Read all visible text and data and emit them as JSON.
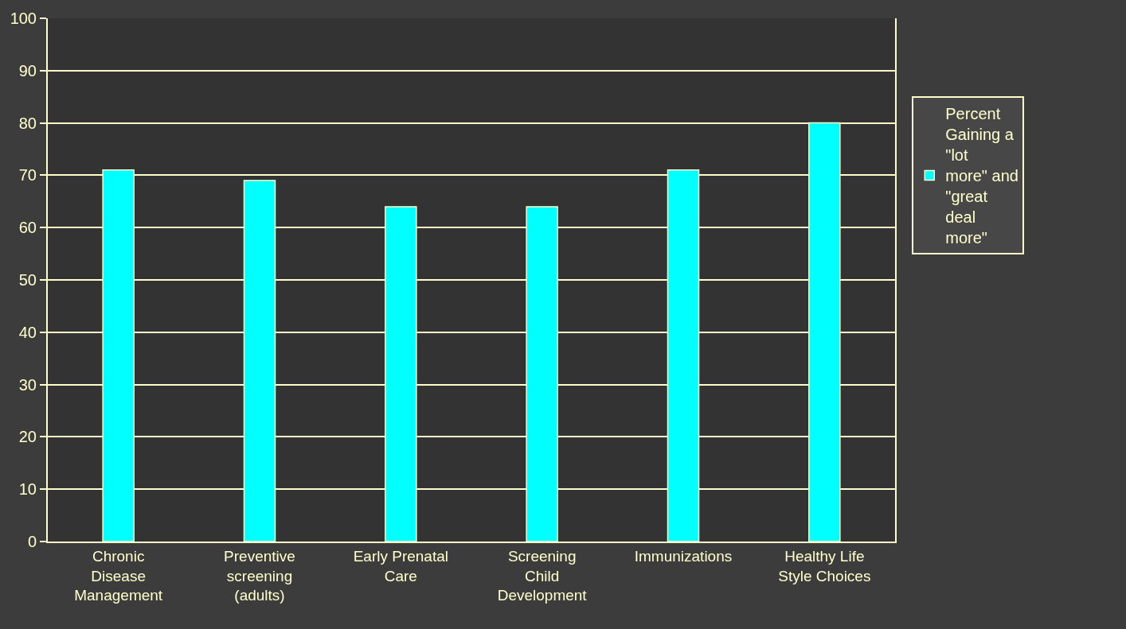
{
  "chart_data": {
    "type": "bar",
    "categories": [
      "Chronic Disease Management",
      "Preventive screening (adults)",
      "Early Prenatal Care",
      "Screening Child Development",
      "Immunizations",
      "Healthy Life Style Choices"
    ],
    "series": [
      {
        "name": "Percent Gaining a \"lot more\" and \"great deal more\"",
        "color": "#00ffff",
        "values": [
          71,
          69,
          64,
          64,
          71,
          80
        ]
      }
    ],
    "ylim": [
      0,
      100
    ],
    "yticks": [
      0,
      10,
      20,
      30,
      40,
      50,
      60,
      70,
      80,
      90,
      100
    ],
    "grid": "y",
    "legend": "right"
  }
}
